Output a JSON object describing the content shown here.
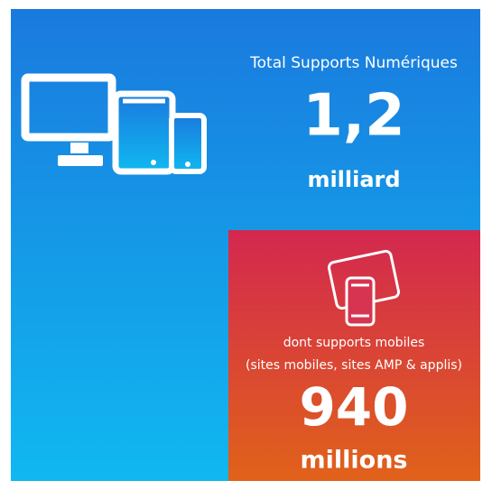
{
  "total": {
    "label": "Total Supports Numériques",
    "value": "1,2",
    "unit": "milliard"
  },
  "mobile": {
    "label": "dont supports mobiles",
    "sublabel": "(sites mobiles, sites AMP & applis)",
    "value": "940",
    "unit": "millions"
  }
}
